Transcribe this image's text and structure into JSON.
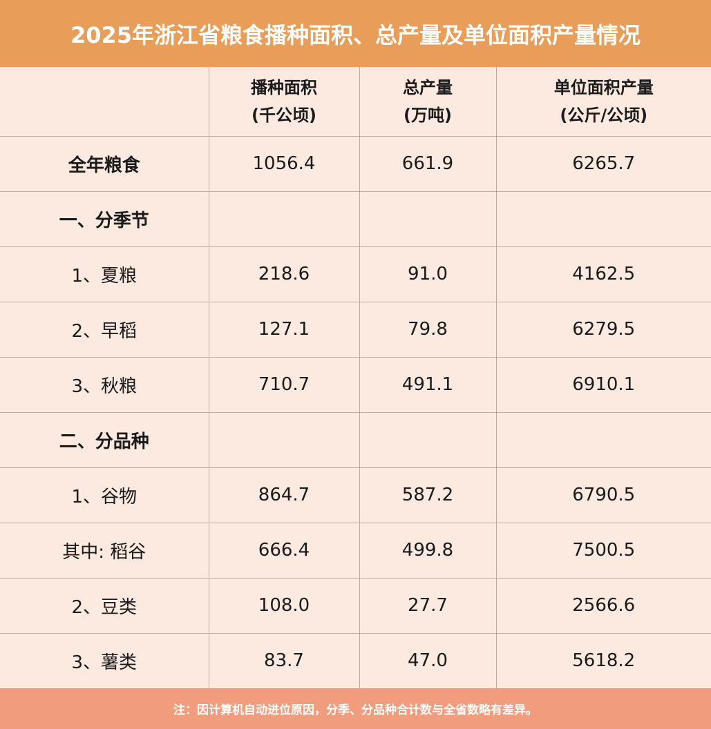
{
  "title": "2025年浙江省粮食播种面积、总产量及单位面积产量情况",
  "header": {
    "col1_line1": "播种面积",
    "col1_line2": "(千公顷)",
    "col2_line1": "总产量",
    "col2_line2": "(万吨)",
    "col3_line1": "单位面积产量",
    "col3_line2": "(公斤/公顷)"
  },
  "rows": [
    {
      "label": "全年粮食",
      "area": "1056.4",
      "output": "661.9",
      "yield": "6265.7"
    },
    {
      "label": "一、分季节",
      "area": "",
      "output": "",
      "yield": ""
    },
    {
      "label": "1、夏粮",
      "area": "218.6",
      "output": "91.0",
      "yield": "4162.5"
    },
    {
      "label": "2、早稻",
      "area": "127.1",
      "output": "79.8",
      "yield": "6279.5"
    },
    {
      "label": "3、秋粮",
      "area": "710.7",
      "output": "491.1",
      "yield": "6910.1"
    },
    {
      "label": "二、分品种",
      "area": "",
      "output": "",
      "yield": ""
    },
    {
      "label": "1、谷物",
      "area": "864.7",
      "output": "587.2",
      "yield": "6790.5"
    },
    {
      "label": "其中: 稻谷",
      "area": "666.4",
      "output": "499.8",
      "yield": "7500.5"
    },
    {
      "label": "2、豆类",
      "area": "108.0",
      "output": "27.7",
      "yield": "2566.6"
    },
    {
      "label": "3、薯类",
      "area": "83.7",
      "output": "47.0",
      "yield": "5618.2"
    }
  ],
  "footer_note": "注：因计算机自动进位原因，分季、分品种合计数与全省数略有差异。",
  "colors": {
    "title_bg": "#e89d58",
    "table_bg": "#fce9df",
    "footer_bg": "#f29c7e"
  }
}
